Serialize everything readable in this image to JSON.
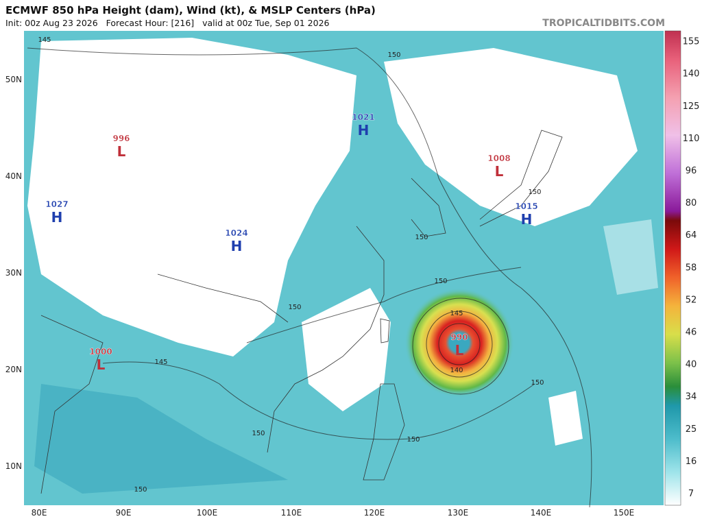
{
  "header": {
    "title": "ECMWF 850 hPa Height (dam), Wind (kt), & MSLP Centers (hPa)",
    "subtitle": "Init: 00z Aug 23 2026   Forecast Hour: [216]   valid at 00z Tue, Sep 01 2026",
    "source": "TROPICALTIDBITS.COM"
  },
  "map": {
    "latitude_labels": [
      "50N",
      "40N",
      "30N",
      "20N",
      "10N"
    ],
    "longitude_labels": [
      "80E",
      "90E",
      "100E",
      "110E",
      "120E",
      "130E",
      "140E",
      "150E"
    ],
    "pressure_centers": [
      {
        "value": "996",
        "kind": "L"
      },
      {
        "value": "1027",
        "kind": "H"
      },
      {
        "value": "1024",
        "kind": "H"
      },
      {
        "value": "1021",
        "kind": "H"
      },
      {
        "value": "1008",
        "kind": "L"
      },
      {
        "value": "1015",
        "kind": "H"
      },
      {
        "value": "990",
        "kind": "L"
      },
      {
        "value": "1000",
        "kind": "L"
      }
    ],
    "contour_labels": [
      "145",
      "150",
      "150",
      "150",
      "150",
      "150",
      "145",
      "140",
      "145",
      "150",
      "150",
      "150",
      "150"
    ]
  },
  "colorbar": {
    "ticks": [
      "7",
      "16",
      "25",
      "34",
      "40",
      "46",
      "52",
      "58",
      "64",
      "80",
      "96",
      "110",
      "125",
      "140",
      "155"
    ]
  }
}
